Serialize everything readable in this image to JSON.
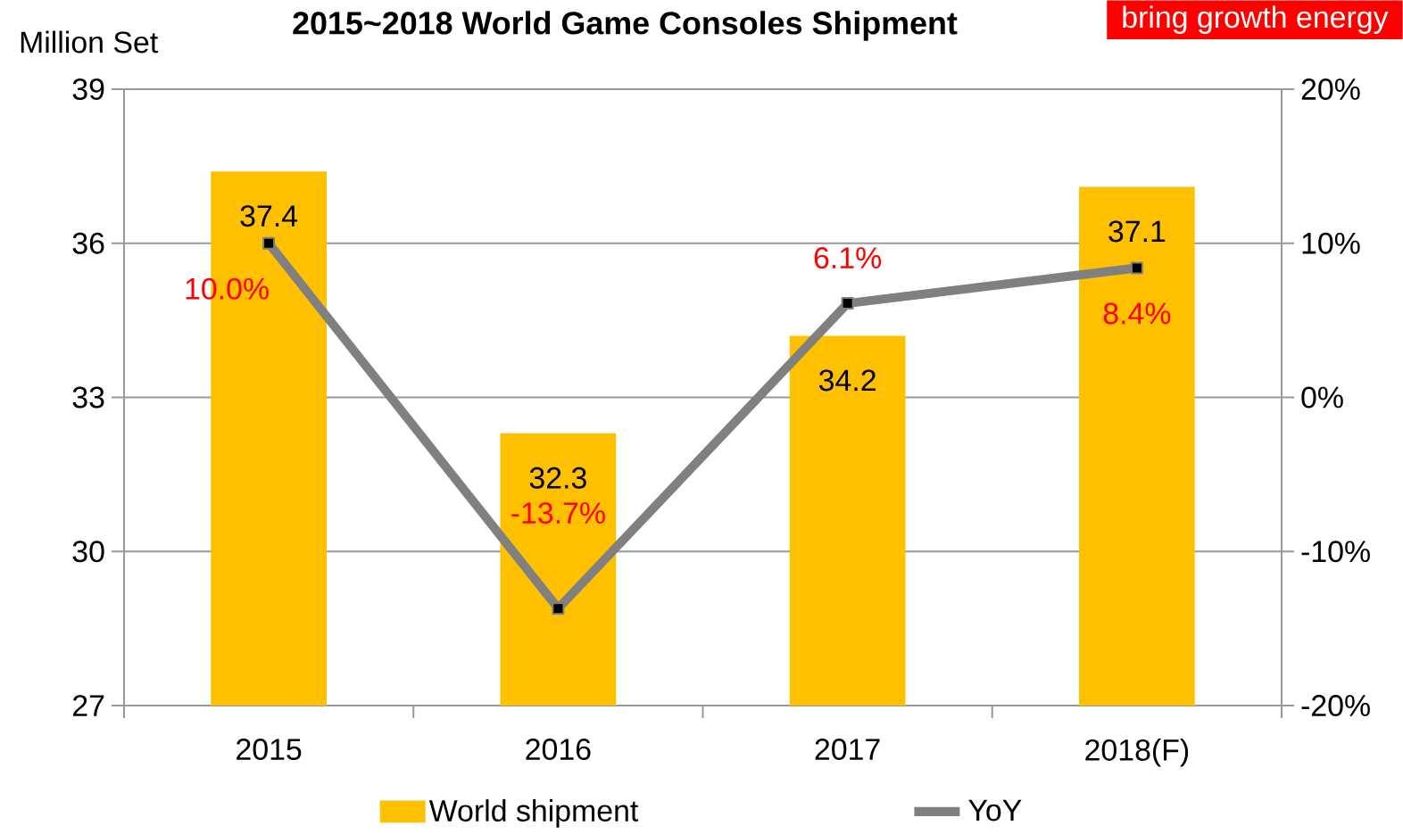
{
  "chart_data": {
    "type": "bar",
    "title": "2015~2018 World Game Consoles Shipment",
    "ylabel": "Million Set",
    "annotations": [
      "bring growth energy"
    ],
    "categories": [
      "2015",
      "2016",
      "2017",
      "2018(F)"
    ],
    "series": [
      {
        "name": "World shipment",
        "color": "#ffc000",
        "values": [
          37.4,
          32.3,
          34.2,
          37.1
        ],
        "value_labels": [
          "37.4",
          "32.3",
          "34.2",
          "37.1"
        ]
      },
      {
        "name": "YoY",
        "type": "line",
        "axis": "y2",
        "color": "#808080",
        "marker": "square",
        "line_style": "solid",
        "values": [
          10.0,
          -13.7,
          6.1,
          8.4
        ],
        "value_labels": [
          "10.0%",
          "-13.7%",
          "6.1%",
          "8.4%"
        ]
      }
    ],
    "ylim": [
      27,
      39
    ],
    "yticks": [
      27,
      30,
      33,
      36,
      39
    ],
    "y2lim": [
      -20,
      20
    ],
    "y2ticks": [
      {
        "value": -20,
        "label": "-20%"
      },
      {
        "value": -10,
        "label": "-10%"
      },
      {
        "value": 0,
        "label": "0%"
      },
      {
        "value": 10,
        "label": "10%"
      },
      {
        "value": 20,
        "label": "20%"
      }
    ],
    "grid": "y",
    "legend": "bottom"
  }
}
